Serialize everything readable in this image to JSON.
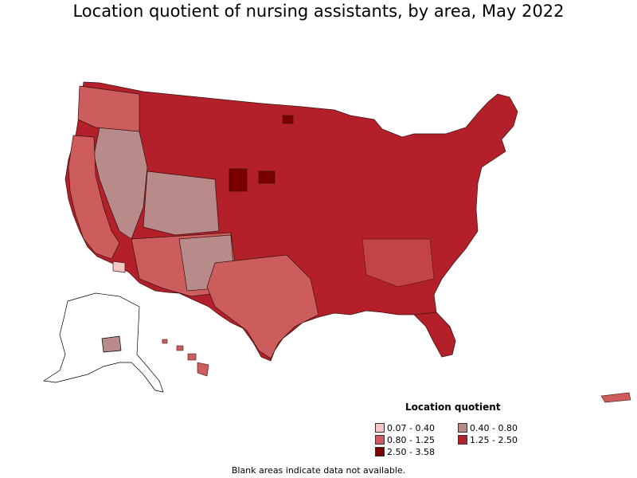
{
  "title": "Location quotient of nursing assistants, by area, May 2022",
  "legend": {
    "title": "Location quotient",
    "items": [
      {
        "label": "0.07 - 0.40",
        "color": "#f4c6c6"
      },
      {
        "label": "0.40 - 0.80",
        "color": "#b98a8a"
      },
      {
        "label": "0.80 - 1.25",
        "color": "#cd5c5c"
      },
      {
        "label": "1.25 - 2.50",
        "color": "#b3202a"
      },
      {
        "label": "2.50 - 3.58",
        "color": "#7a0000"
      }
    ]
  },
  "footnote": "Blank areas indicate data not available."
}
